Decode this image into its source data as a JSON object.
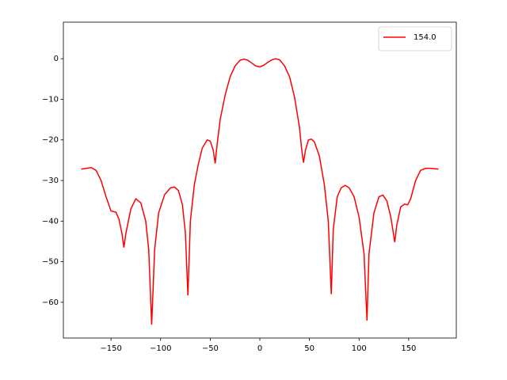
{
  "chart_data": {
    "type": "line",
    "x": [
      -180,
      -170,
      -165,
      -160,
      -155,
      -150,
      -145,
      -142,
      -139,
      -137,
      -135,
      -130,
      -125,
      -120,
      -115,
      -112,
      -109,
      -106,
      -102,
      -96,
      -90,
      -86,
      -82,
      -78,
      -75,
      -72.5,
      -70,
      -66,
      -62,
      -58,
      -53,
      -50,
      -47,
      -45,
      -43,
      -40,
      -35,
      -30,
      -25,
      -20,
      -16,
      -12,
      -8,
      -4,
      0,
      4,
      8,
      12,
      16,
      20,
      25,
      30,
      35,
      40,
      42,
      44,
      46,
      49,
      52,
      55,
      60,
      65,
      69,
      72,
      74,
      78,
      82,
      86,
      90,
      95,
      100,
      105,
      108,
      110,
      115,
      120,
      124,
      128,
      132,
      136,
      138,
      142,
      146,
      149,
      152,
      157,
      162,
      167,
      172,
      180
    ],
    "series": [
      {
        "name": "154.0",
        "color": "#ff0000",
        "values": [
          -27.2,
          -26.8,
          -27.5,
          -30,
          -34,
          -37.5,
          -37.8,
          -39.5,
          -43,
          -46.5,
          -43,
          -37,
          -34.5,
          -35.5,
          -40,
          -47,
          -65.5,
          -47,
          -38,
          -33.5,
          -31.8,
          -31.6,
          -32.5,
          -36,
          -43,
          -58.3,
          -40,
          -31,
          -26,
          -22,
          -20,
          -20.3,
          -22.5,
          -25.8,
          -21,
          -15,
          -9,
          -4.5,
          -1.8,
          -0.4,
          -0.1,
          -0.4,
          -1.1,
          -1.8,
          -2,
          -1.6,
          -0.9,
          -0.3,
          0,
          -0.3,
          -1.8,
          -4.5,
          -9.5,
          -17,
          -22,
          -25.6,
          -22.5,
          -20,
          -19.8,
          -20.5,
          -24,
          -31,
          -40,
          -58,
          -42,
          -34,
          -31.8,
          -31.2,
          -31.8,
          -34,
          -39,
          -48,
          -64.5,
          -48,
          -38,
          -34,
          -33.6,
          -35,
          -39,
          -45.2,
          -41,
          -36.5,
          -35.8,
          -36,
          -34.5,
          -30,
          -27.5,
          -27,
          -27,
          -27.2
        ]
      }
    ],
    "xlim": [
      -198,
      198
    ],
    "ylim": [
      -68.8,
      9
    ],
    "xticks": [
      {
        "value": -150,
        "label": "−150"
      },
      {
        "value": -100,
        "label": "−100"
      },
      {
        "value": -50,
        "label": "−50"
      },
      0,
      50,
      100,
      150
    ],
    "yticks": [
      {
        "value": -60,
        "label": "−60"
      },
      {
        "value": -50,
        "label": "−50"
      },
      {
        "value": -40,
        "label": "−40"
      },
      {
        "value": -30,
        "label": "−30"
      },
      {
        "value": -20,
        "label": "−20"
      },
      {
        "value": -10,
        "label": "−10"
      },
      0
    ],
    "legend": "upper right",
    "grid": false
  }
}
